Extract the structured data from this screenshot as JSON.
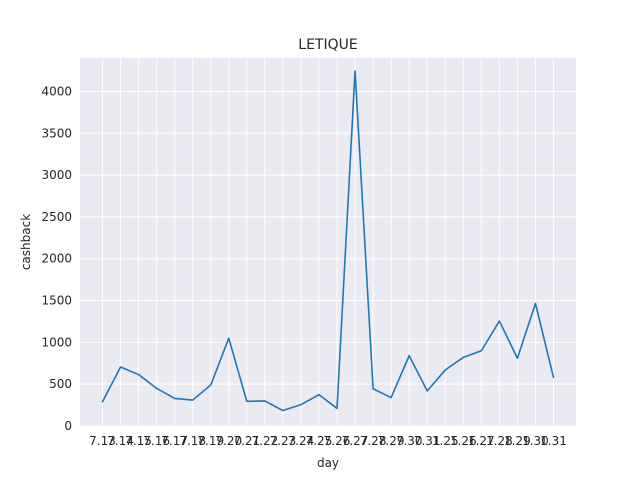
{
  "chart_data": {
    "type": "line",
    "title": "LETIQUE",
    "xlabel": "day",
    "ylabel": "cashback",
    "ylim": [
      0,
      4400
    ],
    "yticks": [
      0,
      500,
      1000,
      1500,
      2000,
      2500,
      3000,
      3500,
      4000
    ],
    "grid": true,
    "categories": [
      "7.13",
      "7.14",
      "7.15",
      "7.16",
      "7.17",
      "7.18",
      "7.19",
      "7.20",
      "7.21",
      "7.22",
      "7.23",
      "7.24",
      "7.25",
      "7.26",
      "7.27",
      "7.28",
      "7.29",
      "7.30",
      "7.31",
      "1.25",
      "1.26",
      "1.27",
      "1.28",
      "1.29",
      "1.30",
      "1.31"
    ],
    "x_tick_labels": [
      "7.13",
      "7.14",
      "7.15",
      "7.16",
      "7.17",
      "7.18",
      "7.19",
      "7.20",
      "7.21",
      "7.22",
      "7.23",
      "7.24",
      "7.25",
      "7.26",
      "7.27",
      "7.28",
      "7.29",
      "7.30",
      "7.31",
      "1.25",
      "1.26",
      "1.27",
      "1.28",
      "1.29",
      "1.30",
      "1.31"
    ],
    "series": [
      {
        "name": "cashback",
        "color": "#1f77b4",
        "values": [
          290,
          705,
          615,
          450,
          330,
          310,
          490,
          1050,
          295,
          300,
          185,
          255,
          375,
          210,
          4245,
          445,
          340,
          840,
          420,
          670,
          820,
          900,
          1255,
          810,
          1465,
          580
        ]
      }
    ]
  }
}
